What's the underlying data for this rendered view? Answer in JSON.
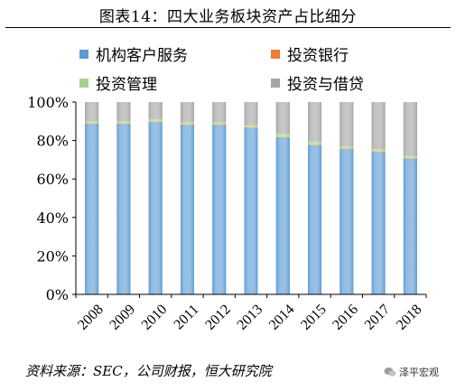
{
  "figure_title": "图表14：四大业务板块资产占比细分",
  "source_note": "资料来源：SEC，公司财报，恒大研究院",
  "watermark": "泽平宏观",
  "colors": {
    "institutional": "#5B9BD5",
    "banking": "#ED7D31",
    "management": "#A9D18E",
    "lending": "#A5A5A5"
  },
  "chart_data": {
    "type": "bar",
    "stacked": true,
    "title": "",
    "xlabel": "",
    "ylabel": "",
    "ylim": [
      0,
      100
    ],
    "yticks": [
      "0%",
      "20%",
      "40%",
      "60%",
      "80%",
      "100%"
    ],
    "grid": false,
    "legend_position": "top",
    "categories": [
      "2008",
      "2009",
      "2010",
      "2011",
      "2012",
      "2013",
      "2014",
      "2015",
      "2016",
      "2017",
      "2018"
    ],
    "series": [
      {
        "name": "机构客户服务",
        "color_key": "institutional",
        "values": [
          88.5,
          88.5,
          89.5,
          88.0,
          88.0,
          86.5,
          81.5,
          77.5,
          75.5,
          74.0,
          70.5
        ]
      },
      {
        "name": "投资银行",
        "color_key": "banking",
        "values": [
          0.3,
          0.3,
          0.3,
          0.3,
          0.3,
          0.3,
          0.3,
          0.3,
          0.3,
          0.3,
          0.3
        ]
      },
      {
        "name": "投资管理",
        "color_key": "management",
        "values": [
          1.2,
          1.2,
          1.4,
          1.2,
          1.2,
          1.2,
          1.7,
          1.7,
          1.2,
          1.2,
          1.2
        ]
      },
      {
        "name": "投资与借贷",
        "color_key": "lending",
        "values": [
          10.0,
          10.0,
          8.8,
          10.5,
          10.5,
          12.0,
          16.5,
          20.5,
          23.0,
          24.5,
          28.0
        ]
      }
    ]
  }
}
